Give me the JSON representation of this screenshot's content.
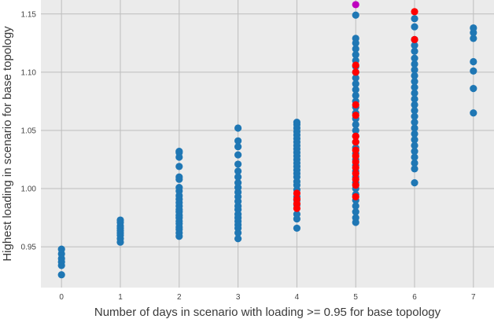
{
  "chart_data": {
    "type": "scatter",
    "xlabel": "Number of days in scenario with loading >= 0.95 for base topology",
    "ylabel": "Highest loading in scenario for base topology",
    "xlim": [
      -0.35,
      7.35
    ],
    "ylim": [
      0.915,
      1.162
    ],
    "x_ticks": [
      "0",
      "1",
      "2",
      "3",
      "4",
      "5",
      "6",
      "7"
    ],
    "y_ticks": [
      "0.95",
      "1.00",
      "1.05",
      "1.10",
      "1.15"
    ],
    "grid": true,
    "colors": {
      "background": "#ebebeb",
      "grid": "#bdbdbd",
      "blue": "#1f77b4",
      "red": "#ff0000",
      "magenta": "#bf00bf"
    },
    "series": [
      {
        "color": "blue",
        "points": [
          [
            0,
            0.926
          ],
          [
            0,
            0.934
          ],
          [
            0,
            0.937
          ],
          [
            0,
            0.94
          ],
          [
            0,
            0.944
          ],
          [
            0,
            0.948
          ],
          [
            1,
            0.954
          ],
          [
            1,
            0.957
          ],
          [
            1,
            0.96
          ],
          [
            1,
            0.962
          ],
          [
            1,
            0.964
          ],
          [
            1,
            0.966
          ],
          [
            1,
            0.968
          ],
          [
            1,
            0.971
          ],
          [
            1,
            0.973
          ],
          [
            2,
            0.959
          ],
          [
            2,
            0.962
          ],
          [
            2,
            0.965
          ],
          [
            2,
            0.967
          ],
          [
            2,
            0.97
          ],
          [
            2,
            0.972
          ],
          [
            2,
            0.975
          ],
          [
            2,
            0.977
          ],
          [
            2,
            0.98
          ],
          [
            2,
            0.982
          ],
          [
            2,
            0.985
          ],
          [
            2,
            0.988
          ],
          [
            2,
            0.991
          ],
          [
            2,
            0.994
          ],
          [
            2,
            0.998
          ],
          [
            2,
            1.001
          ],
          [
            2,
            1.008
          ],
          [
            2,
            1.01
          ],
          [
            2,
            1.019
          ],
          [
            2,
            1.027
          ],
          [
            2,
            1.031
          ],
          [
            2,
            1.032
          ],
          [
            3,
            0.957
          ],
          [
            3,
            0.962
          ],
          [
            3,
            0.966
          ],
          [
            3,
            0.969
          ],
          [
            3,
            0.972
          ],
          [
            3,
            0.975
          ],
          [
            3,
            0.978
          ],
          [
            3,
            0.982
          ],
          [
            3,
            0.985
          ],
          [
            3,
            0.989
          ],
          [
            3,
            0.993
          ],
          [
            3,
            0.997
          ],
          [
            3,
            1.001
          ],
          [
            3,
            1.005
          ],
          [
            3,
            1.01
          ],
          [
            3,
            1.015
          ],
          [
            3,
            1.021
          ],
          [
            3,
            1.029
          ],
          [
            3,
            1.036
          ],
          [
            3,
            1.041
          ],
          [
            3,
            1.052
          ],
          [
            4,
            0.966
          ],
          [
            4,
            0.974
          ],
          [
            4,
            0.978
          ],
          [
            4,
            0.986
          ],
          [
            4,
            0.99
          ],
          [
            4,
            0.993
          ],
          [
            4,
            0.999
          ],
          [
            4,
            1.003
          ],
          [
            4,
            1.006
          ],
          [
            4,
            1.01
          ],
          [
            4,
            1.013
          ],
          [
            4,
            1.016
          ],
          [
            4,
            1.019
          ],
          [
            4,
            1.022
          ],
          [
            4,
            1.025
          ],
          [
            4,
            1.028
          ],
          [
            4,
            1.031
          ],
          [
            4,
            1.034
          ],
          [
            4,
            1.037
          ],
          [
            4,
            1.04
          ],
          [
            4,
            1.043
          ],
          [
            4,
            1.046
          ],
          [
            4,
            1.049
          ],
          [
            4,
            1.052
          ],
          [
            4,
            1.055
          ],
          [
            4,
            1.057
          ],
          [
            5,
            0.971
          ],
          [
            5,
            0.975
          ],
          [
            5,
            0.98
          ],
          [
            5,
            0.985
          ],
          [
            5,
            0.99
          ],
          [
            5,
            0.995
          ],
          [
            5,
            1.0
          ],
          [
            5,
            1.005
          ],
          [
            5,
            1.01
          ],
          [
            5,
            1.015
          ],
          [
            5,
            1.02
          ],
          [
            5,
            1.025
          ],
          [
            5,
            1.03
          ],
          [
            5,
            1.035
          ],
          [
            5,
            1.04
          ],
          [
            5,
            1.045
          ],
          [
            5,
            1.05
          ],
          [
            5,
            1.055
          ],
          [
            5,
            1.06
          ],
          [
            5,
            1.065
          ],
          [
            5,
            1.07
          ],
          [
            5,
            1.075
          ],
          [
            5,
            1.08
          ],
          [
            5,
            1.085
          ],
          [
            5,
            1.09
          ],
          [
            5,
            1.095
          ],
          [
            5,
            1.1
          ],
          [
            5,
            1.105
          ],
          [
            5,
            1.11
          ],
          [
            5,
            1.115
          ],
          [
            5,
            1.12
          ],
          [
            5,
            1.125
          ],
          [
            5,
            1.129
          ],
          [
            5,
            1.149
          ],
          [
            6,
            1.005
          ],
          [
            6,
            1.017
          ],
          [
            6,
            1.022
          ],
          [
            6,
            1.027
          ],
          [
            6,
            1.032
          ],
          [
            6,
            1.037
          ],
          [
            6,
            1.042
          ],
          [
            6,
            1.047
          ],
          [
            6,
            1.052
          ],
          [
            6,
            1.057
          ],
          [
            6,
            1.062
          ],
          [
            6,
            1.067
          ],
          [
            6,
            1.072
          ],
          [
            6,
            1.077
          ],
          [
            6,
            1.082
          ],
          [
            6,
            1.087
          ],
          [
            6,
            1.092
          ],
          [
            6,
            1.097
          ],
          [
            6,
            1.102
          ],
          [
            6,
            1.107
          ],
          [
            6,
            1.112
          ],
          [
            6,
            1.118
          ],
          [
            6,
            1.123
          ],
          [
            6,
            1.128
          ],
          [
            6,
            1.139
          ],
          [
            6,
            1.146
          ],
          [
            7,
            1.065
          ],
          [
            7,
            1.086
          ],
          [
            7,
            1.101
          ],
          [
            7,
            1.109
          ],
          [
            7,
            1.129
          ],
          [
            7,
            1.134
          ],
          [
            7,
            1.138
          ]
        ]
      },
      {
        "color": "red",
        "points": [
          [
            4,
            0.983
          ],
          [
            4,
            0.987
          ],
          [
            4,
            0.991
          ],
          [
            4,
            0.996
          ],
          [
            5,
            0.993
          ],
          [
            5,
            1.003
          ],
          [
            5,
            1.008
          ],
          [
            5,
            1.013
          ],
          [
            5,
            1.018
          ],
          [
            5,
            1.023
          ],
          [
            5,
            1.028
          ],
          [
            5,
            1.033
          ],
          [
            5,
            1.04
          ],
          [
            5,
            1.045
          ],
          [
            5,
            1.063
          ],
          [
            5,
            1.072
          ],
          [
            5,
            1.1
          ],
          [
            5,
            1.106
          ],
          [
            6,
            1.128
          ],
          [
            6,
            1.152
          ]
        ]
      },
      {
        "color": "magenta",
        "points": [
          [
            5,
            1.158
          ]
        ]
      }
    ]
  }
}
